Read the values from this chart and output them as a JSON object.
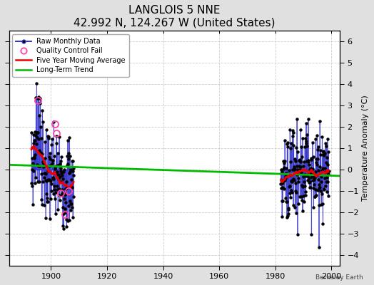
{
  "title": "LANGLOIS 5 NNE",
  "subtitle": "42.992 N, 124.267 W (United States)",
  "ylabel": "Temperature Anomaly (°C)",
  "credit": "Berkeley Earth",
  "xlim": [
    1885,
    2003
  ],
  "ylim": [
    -4.5,
    6.5
  ],
  "yticks": [
    -4,
    -3,
    -2,
    -1,
    0,
    1,
    2,
    3,
    4,
    5,
    6
  ],
  "xticks": [
    1900,
    1920,
    1940,
    1960,
    1980,
    2000
  ],
  "bg_color": "#e0e0e0",
  "plot_bg_color": "#ffffff",
  "grid_color": "#c8c8c8",
  "long_trend_x": [
    1885,
    2003
  ],
  "long_trend_y": [
    0.22,
    -0.3
  ],
  "early_qc_fails": [
    {
      "year": 1895.3,
      "val": 3.25
    },
    {
      "year": 1901.3,
      "val": 2.15
    },
    {
      "year": 1902.0,
      "val": 1.7
    },
    {
      "year": 1903.5,
      "val": -1.1
    },
    {
      "year": 1905.0,
      "val": -2.1
    },
    {
      "year": 1906.3,
      "val": -1.0
    }
  ],
  "line_color": "#3333cc",
  "line_alpha": 0.55,
  "dot_color": "#000000",
  "qc_color": "#ff44aa",
  "ma_color": "#ee0000",
  "trend_color": "#00bb00",
  "title_fontsize": 11,
  "subtitle_fontsize": 9,
  "tick_fontsize": 8,
  "ylabel_fontsize": 8
}
